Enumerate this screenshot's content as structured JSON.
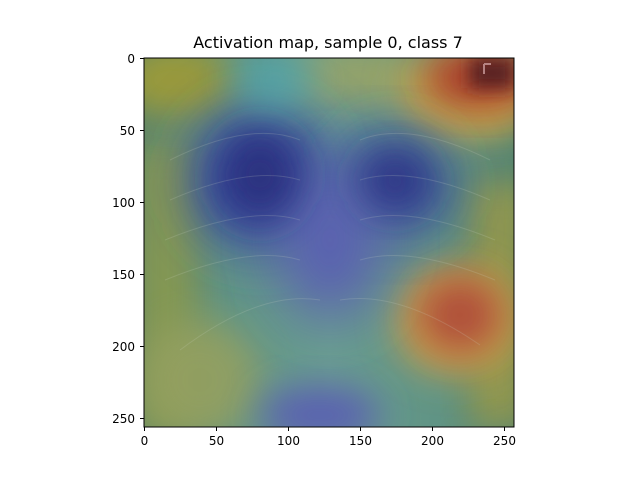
{
  "figure": {
    "title": "Activation map, sample 0, class 7"
  },
  "axes": {
    "x_ticks": [
      "0",
      "50",
      "100",
      "150",
      "200",
      "250"
    ],
    "y_ticks": [
      "0",
      "50",
      "100",
      "150",
      "200",
      "250"
    ],
    "xlim": [
      0,
      256
    ],
    "ylim": [
      256,
      0
    ]
  },
  "image": {
    "description_tokens": [
      "chest-xray",
      "jet-colormap-overlay"
    ],
    "overlay_colormap": "jet",
    "hotspots": [
      {
        "label": "top-right",
        "level": 1.0
      },
      {
        "label": "lower-right",
        "level": 0.9
      },
      {
        "label": "top-left",
        "level": 0.55
      },
      {
        "label": "left-lung",
        "level": 0.05
      },
      {
        "label": "right-lung",
        "level": 0.1
      },
      {
        "label": "bottom-center",
        "level": 0.15
      }
    ]
  }
}
